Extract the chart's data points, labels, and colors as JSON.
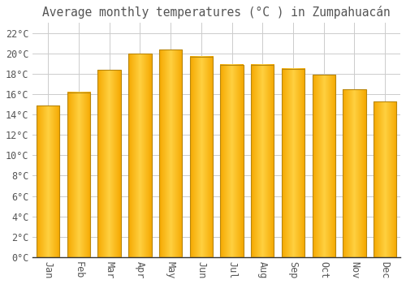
{
  "title": "Average monthly temperatures (°C ) in Zumpahuacán",
  "months": [
    "Jan",
    "Feb",
    "Mar",
    "Apr",
    "May",
    "Jun",
    "Jul",
    "Aug",
    "Sep",
    "Oct",
    "Nov",
    "Dec"
  ],
  "values": [
    14.9,
    16.2,
    18.4,
    20.0,
    20.4,
    19.7,
    18.9,
    18.9,
    18.5,
    17.9,
    16.5,
    15.3
  ],
  "bar_color_center": "#FFD040",
  "bar_color_edge": "#F5A800",
  "bar_border_color": "#B8860B",
  "background_color": "#FFFFFF",
  "grid_color": "#CCCCCC",
  "text_color": "#555555",
  "ylim": [
    0,
    23
  ],
  "yticks": [
    0,
    2,
    4,
    6,
    8,
    10,
    12,
    14,
    16,
    18,
    20,
    22
  ],
  "title_fontsize": 10.5,
  "tick_fontsize": 8.5,
  "bar_width": 0.75
}
